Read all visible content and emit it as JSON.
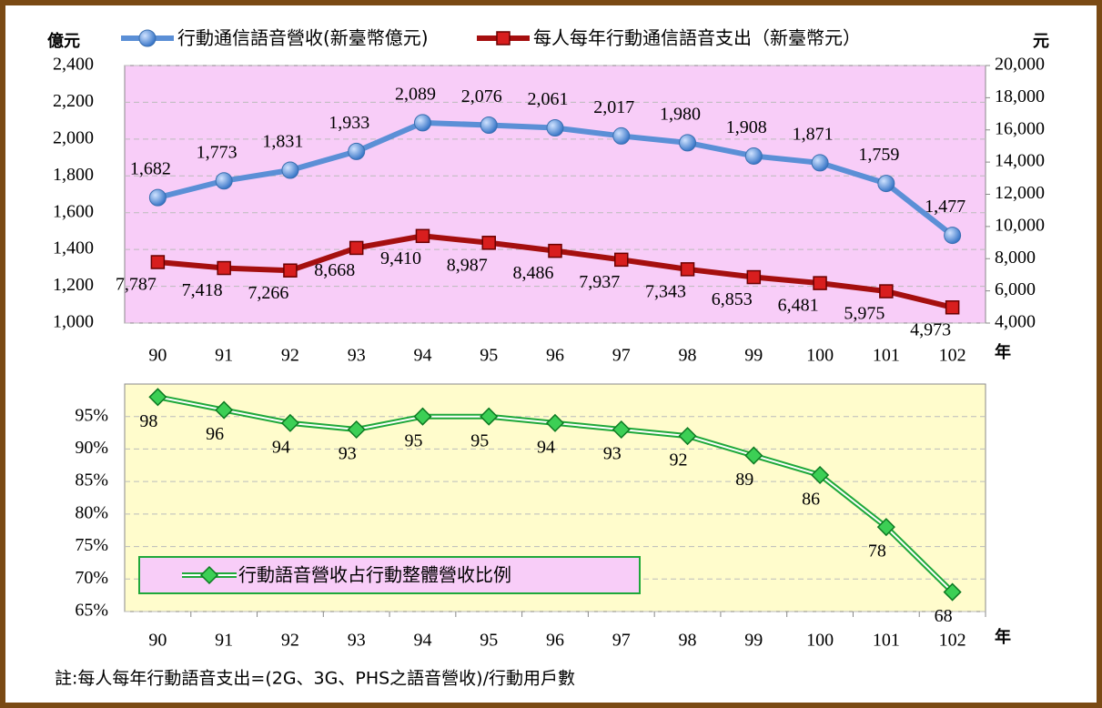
{
  "chart_data": [
    {
      "type": "line",
      "ylabel": "億元",
      "y2label": "元",
      "x_unit": "年",
      "categories": [
        "90",
        "91",
        "92",
        "93",
        "94",
        "95",
        "96",
        "97",
        "98",
        "99",
        "100",
        "101",
        "102"
      ],
      "series": [
        {
          "name": "行動通信語音營收(新臺幣億元)",
          "color": "#5b8fd6",
          "marker": "circle",
          "values": [
            1682,
            1773,
            1831,
            1933,
            2089,
            2076,
            2061,
            2017,
            1980,
            1908,
            1871,
            1759,
            1477
          ],
          "value_labels": [
            "1,682",
            "1,773",
            "1,831",
            "1,933",
            "2,089",
            "2,076",
            "2,061",
            "2,017",
            "1,980",
            "1,908",
            "1,871",
            "1,759",
            "1,477"
          ]
        },
        {
          "name": "每人每年行動通信語音支出（新臺幣元）",
          "color": "#a50f0f",
          "marker": "square",
          "axis": "y2",
          "values": [
            7787,
            7418,
            7266,
            8668,
            9410,
            8987,
            8486,
            7937,
            7343,
            6853,
            6481,
            5975,
            4973
          ],
          "value_labels": [
            "7,787",
            "7,418",
            "7,266",
            "8,668",
            "9,410",
            "8,987",
            "8,486",
            "7,937",
            "7,343",
            "6,853",
            "6,481",
            "5,975",
            "4,973"
          ]
        }
      ],
      "ylim": [
        1000,
        2400
      ],
      "yticks": [
        {
          "value": 1000,
          "label": "1,000"
        },
        {
          "value": 1200,
          "label": "1,200"
        },
        {
          "value": 1400,
          "label": "1,400"
        },
        {
          "value": 1600,
          "label": "1,600"
        },
        {
          "value": 1800,
          "label": "1,800"
        },
        {
          "value": 2000,
          "label": "2,000"
        },
        {
          "value": 2200,
          "label": "2,200"
        },
        {
          "value": 2400,
          "label": "2,400"
        }
      ],
      "y2lim": [
        4000,
        20000
      ],
      "y2ticks": [
        {
          "value": 4000,
          "label": "4,000"
        },
        {
          "value": 6000,
          "label": "6,000"
        },
        {
          "value": 8000,
          "label": "8,000"
        },
        {
          "value": 10000,
          "label": "10,000"
        },
        {
          "value": 12000,
          "label": "12,000"
        },
        {
          "value": 14000,
          "label": "14,000"
        },
        {
          "value": 16000,
          "label": "16,000"
        },
        {
          "value": 18000,
          "label": "18,000"
        },
        {
          "value": 20000,
          "label": "20,000"
        }
      ],
      "grid": true,
      "legend": "top"
    },
    {
      "type": "line",
      "x_unit": "年",
      "categories": [
        "90",
        "91",
        "92",
        "93",
        "94",
        "95",
        "96",
        "97",
        "98",
        "99",
        "100",
        "101",
        "102"
      ],
      "series": [
        {
          "name": "行動語音營收占行動整體營收比例",
          "color": "#1fa83a",
          "marker": "diamond",
          "values": [
            98,
            96,
            94,
            93,
            95,
            95,
            94,
            93,
            92,
            89,
            86,
            78,
            68
          ]
        }
      ],
      "ylim": [
        65,
        100
      ],
      "yticks": [
        {
          "value": 65,
          "label": "65%"
        },
        {
          "value": 70,
          "label": "70%"
        },
        {
          "value": 75,
          "label": "75%"
        },
        {
          "value": 80,
          "label": "80%"
        },
        {
          "value": 85,
          "label": "85%"
        },
        {
          "value": 90,
          "label": "90%"
        },
        {
          "value": 95,
          "label": "95%"
        }
      ],
      "grid": true,
      "legend": "bottom left"
    }
  ],
  "note": "註:每人每年行動語音支出=(2G、3G、PHS之語音營收)/行動用戶數"
}
